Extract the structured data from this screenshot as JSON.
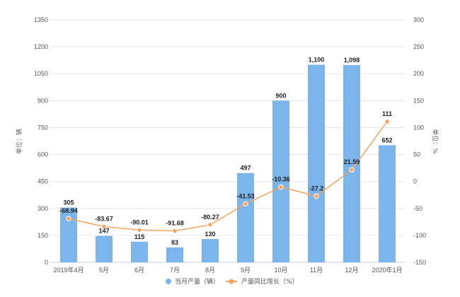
{
  "chart_data": {
    "type": "bar+line",
    "categories": [
      "2019年4月",
      "5月",
      "6月",
      "7月",
      "8月",
      "9月",
      "10月",
      "11月",
      "12月",
      "2020年1月"
    ],
    "series": [
      {
        "name": "当月产量（辆）",
        "type": "bar",
        "axis": "left",
        "color": "#7cb5ec",
        "values": [
          305,
          147,
          115,
          83,
          130,
          497,
          900,
          1100,
          1098,
          652
        ],
        "labels": [
          "305",
          "147",
          "115",
          "83",
          "130",
          "497",
          "900",
          "1,100",
          "1,098",
          "652"
        ]
      },
      {
        "name": "产量同比增长（%）",
        "type": "line",
        "axis": "right",
        "color": "#f7a35c",
        "values": [
          -68.94,
          -83.67,
          -90.01,
          -91.68,
          -80.27,
          -41.53,
          -10.36,
          -27.2,
          21.59,
          111
        ],
        "labels": [
          "-68.94",
          "-83.67",
          "-90.01",
          "-91.68",
          "-80.27",
          "-41.53",
          "-10.36",
          "-27.2",
          "21.59",
          "111"
        ]
      }
    ],
    "y_left": {
      "label": "单位：辆",
      "min": 0,
      "max": 1350,
      "ticks": [
        0,
        150,
        300,
        450,
        600,
        750,
        900,
        1050,
        1200,
        1350
      ]
    },
    "y_right": {
      "label": "单位：%",
      "min": -150,
      "max": 300,
      "ticks": [
        -150,
        -100,
        -50,
        0,
        50,
        100,
        150,
        200,
        250,
        300
      ]
    },
    "grid": true,
    "legend_position": "bottom-center"
  }
}
